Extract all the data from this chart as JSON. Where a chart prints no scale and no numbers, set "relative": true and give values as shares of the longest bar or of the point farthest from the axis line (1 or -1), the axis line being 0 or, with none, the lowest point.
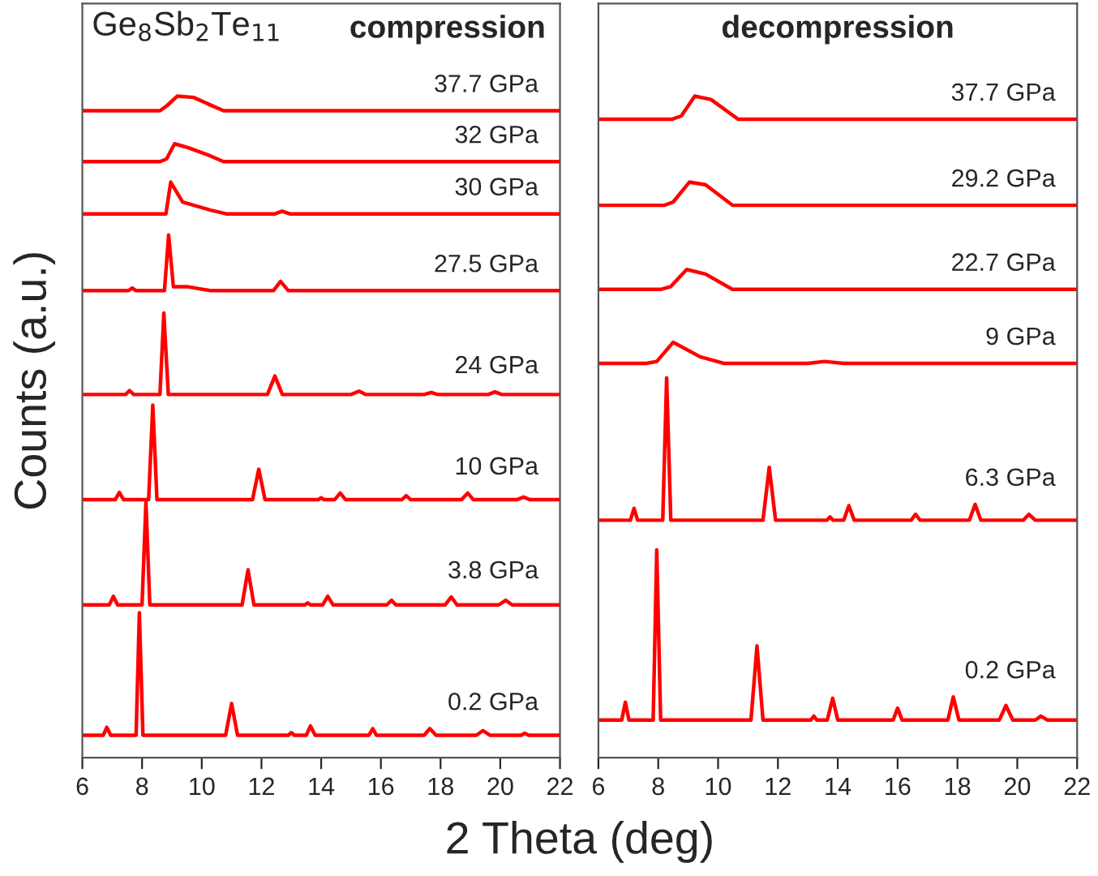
{
  "chart_data": [
    {
      "type": "line",
      "title": "compression",
      "xlabel": "2 Theta (deg)",
      "ylabel": "Counts (a.u.)",
      "annotations": [
        "Ge$_{8}$Sb$_{2}$Te$_{11}$"
      ],
      "relative": true,
      "xlim": [
        6,
        22
      ],
      "xticks": [
        6,
        8,
        10,
        12,
        14,
        16,
        18,
        20,
        22
      ],
      "tick_labels": "x",
      "grid": false,
      "legend": false,
      "marker": "none",
      "line_style": "solid",
      "series": [
        {
          "name": "0.2 GPa",
          "color": "#ff0000",
          "x": [
            6,
            6.7,
            6.82,
            6.95,
            7.8,
            7.91,
            8.03,
            10.8,
            11.0,
            11.2,
            12.9,
            13.0,
            13.1,
            13.5,
            13.64,
            13.8,
            15.6,
            15.73,
            15.85,
            17.45,
            17.64,
            17.85,
            19.2,
            19.42,
            19.65,
            20.7,
            20.82,
            20.95,
            22
          ],
          "values": [
            0.034,
            0.034,
            0.046,
            0.034,
            0.034,
            0.219,
            0.034,
            0.034,
            0.082,
            0.034,
            0.034,
            0.038,
            0.034,
            0.034,
            0.048,
            0.034,
            0.034,
            0.044,
            0.034,
            0.034,
            0.044,
            0.034,
            0.034,
            0.041,
            0.034,
            0.034,
            0.037,
            0.034,
            0.034
          ]
        },
        {
          "name": "3.8 GPa",
          "color": "#ff0000",
          "x": [
            6,
            6.9,
            7.04,
            7.18,
            8.0,
            8.13,
            8.26,
            11.35,
            11.55,
            11.75,
            13.45,
            13.55,
            13.65,
            14.05,
            14.22,
            14.4,
            16.2,
            16.36,
            16.5,
            18.15,
            18.36,
            18.55,
            19.95,
            20.18,
            20.4,
            22
          ],
          "values": [
            0.231,
            0.231,
            0.244,
            0.231,
            0.231,
            0.386,
            0.231,
            0.231,
            0.284,
            0.231,
            0.231,
            0.234,
            0.231,
            0.231,
            0.244,
            0.231,
            0.231,
            0.238,
            0.231,
            0.231,
            0.243,
            0.231,
            0.231,
            0.238,
            0.231,
            0.231
          ]
        },
        {
          "name": "10 GPa",
          "color": "#ff0000",
          "x": [
            6,
            7.1,
            7.24,
            7.38,
            8.22,
            8.36,
            8.5,
            11.7,
            11.91,
            12.12,
            13.9,
            14.0,
            14.1,
            14.45,
            14.64,
            14.82,
            16.7,
            16.85,
            17.0,
            18.7,
            18.91,
            19.1,
            20.55,
            20.78,
            21.0,
            22
          ],
          "values": [
            0.39,
            0.39,
            0.401,
            0.39,
            0.39,
            0.533,
            0.39,
            0.39,
            0.436,
            0.39,
            0.39,
            0.393,
            0.39,
            0.39,
            0.4,
            0.39,
            0.39,
            0.396,
            0.39,
            0.39,
            0.4,
            0.39,
            0.39,
            0.394,
            0.39,
            0.39
          ]
        },
        {
          "name": "24 GPa",
          "color": "#ff0000",
          "x": [
            6,
            7.45,
            7.58,
            7.72,
            8.6,
            8.73,
            8.88,
            12.2,
            12.45,
            12.7,
            15.0,
            15.27,
            15.5,
            17.45,
            17.69,
            17.9,
            19.6,
            19.82,
            20.05,
            22
          ],
          "values": [
            0.549,
            0.549,
            0.555,
            0.549,
            0.549,
            0.672,
            0.549,
            0.549,
            0.577,
            0.549,
            0.549,
            0.554,
            0.549,
            0.549,
            0.552,
            0.549,
            0.549,
            0.553,
            0.549,
            0.549
          ]
        },
        {
          "name": "27.5 GPa",
          "color": "#ff0000",
          "x": [
            6,
            7.55,
            7.67,
            7.8,
            8.75,
            8.89,
            9.05,
            9.5,
            10.3,
            12.4,
            12.64,
            12.9,
            22
          ],
          "values": [
            0.706,
            0.706,
            0.71,
            0.706,
            0.706,
            0.79,
            0.712,
            0.712,
            0.706,
            0.706,
            0.72,
            0.706,
            0.706
          ]
        },
        {
          "name": "30 GPa",
          "color": "#ff0000",
          "x": [
            6,
            8.8,
            8.96,
            9.36,
            10.27,
            10.82,
            12.45,
            12.69,
            12.95,
            22
          ],
          "values": [
            0.822,
            0.822,
            0.87,
            0.84,
            0.828,
            0.822,
            0.822,
            0.826,
            0.822,
            0.822
          ]
        },
        {
          "name": "32 GPa",
          "color": "#ff0000",
          "x": [
            6,
            8.6,
            8.82,
            9.09,
            9.55,
            10.27,
            10.73,
            22
          ],
          "values": [
            0.901,
            0.901,
            0.905,
            0.928,
            0.922,
            0.91,
            0.901,
            0.901
          ]
        },
        {
          "name": "37.7 GPa",
          "color": "#ff0000",
          "x": [
            6,
            8.6,
            8.82,
            9.18,
            9.73,
            10.27,
            10.73,
            22
          ],
          "values": [
            0.978,
            0.978,
            0.985,
            1.0,
            0.998,
            0.987,
            0.978,
            0.978
          ]
        }
      ]
    },
    {
      "type": "line",
      "title": "decompression",
      "relative": true,
      "xlim": [
        6,
        22
      ],
      "xticks": [
        6,
        8,
        10,
        12,
        14,
        16,
        18,
        20,
        22
      ],
      "tick_labels": "x",
      "grid": false,
      "legend": false,
      "marker": "none",
      "line_style": "solid",
      "series": [
        {
          "name": "0.2 GPa",
          "color": "#ff0000",
          "x": [
            6,
            6.78,
            6.9,
            7.02,
            7.83,
            7.95,
            8.08,
            11.1,
            11.3,
            11.5,
            13.1,
            13.2,
            13.3,
            13.65,
            13.83,
            14.0,
            15.85,
            16.0,
            16.15,
            17.68,
            17.86,
            18.05,
            19.4,
            19.62,
            19.85,
            20.6,
            20.79,
            21.0,
            22
          ],
          "values": [
            0.057,
            0.057,
            0.084,
            0.057,
            0.057,
            0.314,
            0.057,
            0.057,
            0.169,
            0.057,
            0.057,
            0.063,
            0.057,
            0.057,
            0.09,
            0.057,
            0.057,
            0.075,
            0.057,
            0.057,
            0.092,
            0.057,
            0.057,
            0.079,
            0.057,
            0.057,
            0.063,
            0.057,
            0.057
          ]
        },
        {
          "name": "6.3 GPa",
          "color": "#ff0000",
          "x": [
            6,
            7.07,
            7.19,
            7.31,
            8.15,
            8.28,
            8.42,
            11.5,
            11.71,
            11.92,
            13.64,
            13.74,
            13.84,
            14.2,
            14.37,
            14.55,
            16.45,
            16.6,
            16.75,
            18.4,
            18.59,
            18.78,
            20.2,
            20.39,
            20.6,
            22
          ],
          "values": [
            0.359,
            0.359,
            0.377,
            0.359,
            0.359,
            0.574,
            0.359,
            0.359,
            0.439,
            0.359,
            0.359,
            0.364,
            0.359,
            0.359,
            0.381,
            0.359,
            0.359,
            0.368,
            0.359,
            0.359,
            0.383,
            0.359,
            0.359,
            0.368,
            0.359,
            0.359
          ]
        },
        {
          "name": "9 GPa",
          "color": "#ff0000",
          "x": [
            6,
            7.6,
            7.95,
            8.5,
            9.4,
            10.21,
            13.0,
            13.56,
            14.2,
            22
          ],
          "values": [
            0.596,
            0.596,
            0.599,
            0.628,
            0.606,
            0.596,
            0.596,
            0.599,
            0.596,
            0.596
          ]
        },
        {
          "name": "22.7 GPa",
          "color": "#ff0000",
          "x": [
            6,
            8.1,
            8.41,
            8.95,
            9.58,
            10.48,
            22
          ],
          "values": [
            0.708,
            0.708,
            0.712,
            0.738,
            0.731,
            0.708,
            0.708
          ]
        },
        {
          "name": "29.2 GPa",
          "color": "#ff0000",
          "x": [
            6,
            8.2,
            8.5,
            9.04,
            9.58,
            10.48,
            22
          ],
          "values": [
            0.835,
            0.835,
            0.84,
            0.87,
            0.866,
            0.835,
            0.835
          ]
        },
        {
          "name": "37.7 GPa",
          "color": "#ff0000",
          "x": [
            6,
            8.45,
            8.77,
            9.22,
            9.76,
            10.67,
            22
          ],
          "values": [
            0.965,
            0.965,
            0.97,
            1.0,
            0.995,
            0.965,
            0.965
          ]
        }
      ]
    }
  ]
}
